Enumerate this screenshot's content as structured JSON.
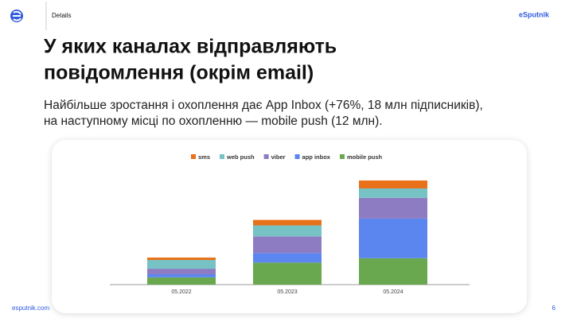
{
  "header": {
    "section": "Details",
    "brand": "eSputnik"
  },
  "title": [
    "У яких каналах відправляють",
    "повідомлення (окрім email)"
  ],
  "subtitle": [
    "Найбільше зростання і охоплення дає App Inbox (+76%, 18 млн підписників),",
    "на наступному місці по охопленню — mobile push (12 млн)."
  ],
  "chart_data": {
    "type": "stacked_bar",
    "categories": [
      "05.2022",
      "05.2023",
      "05.2024"
    ],
    "series": [
      {
        "name": "mobile push",
        "color": "#6aa84f",
        "values": [
          3.3,
          10,
          12
        ]
      },
      {
        "name": "app inbox",
        "color": "#5b86f0",
        "values": [
          1.4,
          4.3,
          18
        ]
      },
      {
        "name": "viber",
        "color": "#8e7cc3",
        "values": [
          2.5,
          7.6,
          9.4
        ]
      },
      {
        "name": "web push",
        "color": "#76c2c4",
        "values": [
          4,
          5,
          4.3
        ]
      },
      {
        "name": "sms",
        "color": "#e8711a",
        "values": [
          1.1,
          2.5,
          3.6
        ]
      }
    ],
    "legend": "top"
  },
  "footer": {
    "site": "esputnik.com",
    "page": "6"
  }
}
